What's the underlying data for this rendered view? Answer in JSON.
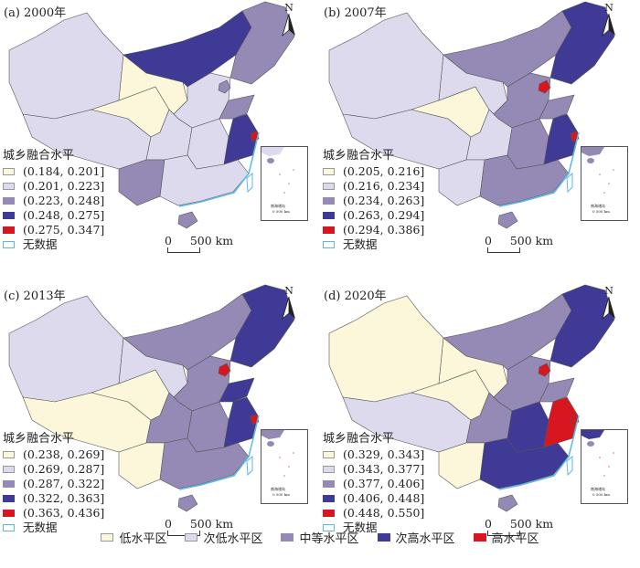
{
  "colors": [
    "#fcf7da",
    "#dcdaec",
    "#9589b5",
    "#3f3a96",
    "#d7161f"
  ],
  "nodata_color": "#5bb8e8",
  "legend_title": "城乡融合水平",
  "nodata_label": "无数据",
  "scale_label": "0     500 km",
  "north_label": "N",
  "inset": {
    "title": "南海诸岛",
    "scale": "0  500 km"
  },
  "panels": [
    {
      "title": "(a) 2000年",
      "ranges": [
        "(0.184, 0.201]",
        "(0.201, 0.223]",
        "(0.223, 0.248]",
        "(0.248, 0.275]",
        "(0.275, 0.347]"
      ],
      "region_classes": [
        1,
        1,
        0,
        0,
        3,
        2,
        1,
        2,
        2,
        1,
        2,
        1,
        3,
        4,
        1,
        2
      ]
    },
    {
      "title": "(b) 2007年",
      "ranges": [
        "(0.205, 0.216]",
        "(0.216, 0.234]",
        "(0.234, 0.263]",
        "(0.263, 0.294]",
        "(0.294, 0.386]"
      ],
      "region_classes": [
        1,
        1,
        0,
        1,
        2,
        3,
        2,
        4,
        2,
        1,
        1,
        2,
        3,
        4,
        2,
        2
      ]
    },
    {
      "title": "(c) 2013年",
      "ranges": [
        "(0.238, 0.269]",
        "(0.269, 0.287]",
        "(0.287, 0.322]",
        "(0.322, 0.363]",
        "(0.363, 0.436]"
      ],
      "region_classes": [
        1,
        0,
        0,
        1,
        2,
        3,
        2,
        4,
        3,
        2,
        0,
        2,
        3,
        4,
        2,
        2
      ]
    },
    {
      "title": "(d) 2020年",
      "ranges": [
        "(0.329, 0.343]",
        "(0.343, 0.377]",
        "(0.377, 0.406]",
        "(0.406, 0.448]",
        "(0.448, 0.550]"
      ],
      "region_classes": [
        0,
        1,
        0,
        0,
        2,
        3,
        2,
        4,
        2,
        2,
        0,
        3,
        4,
        4,
        3,
        2
      ]
    }
  ],
  "bottom_legend": [
    "低水平区",
    "次低水平区",
    "中等水平区",
    "次高水平区",
    "高水平区"
  ]
}
